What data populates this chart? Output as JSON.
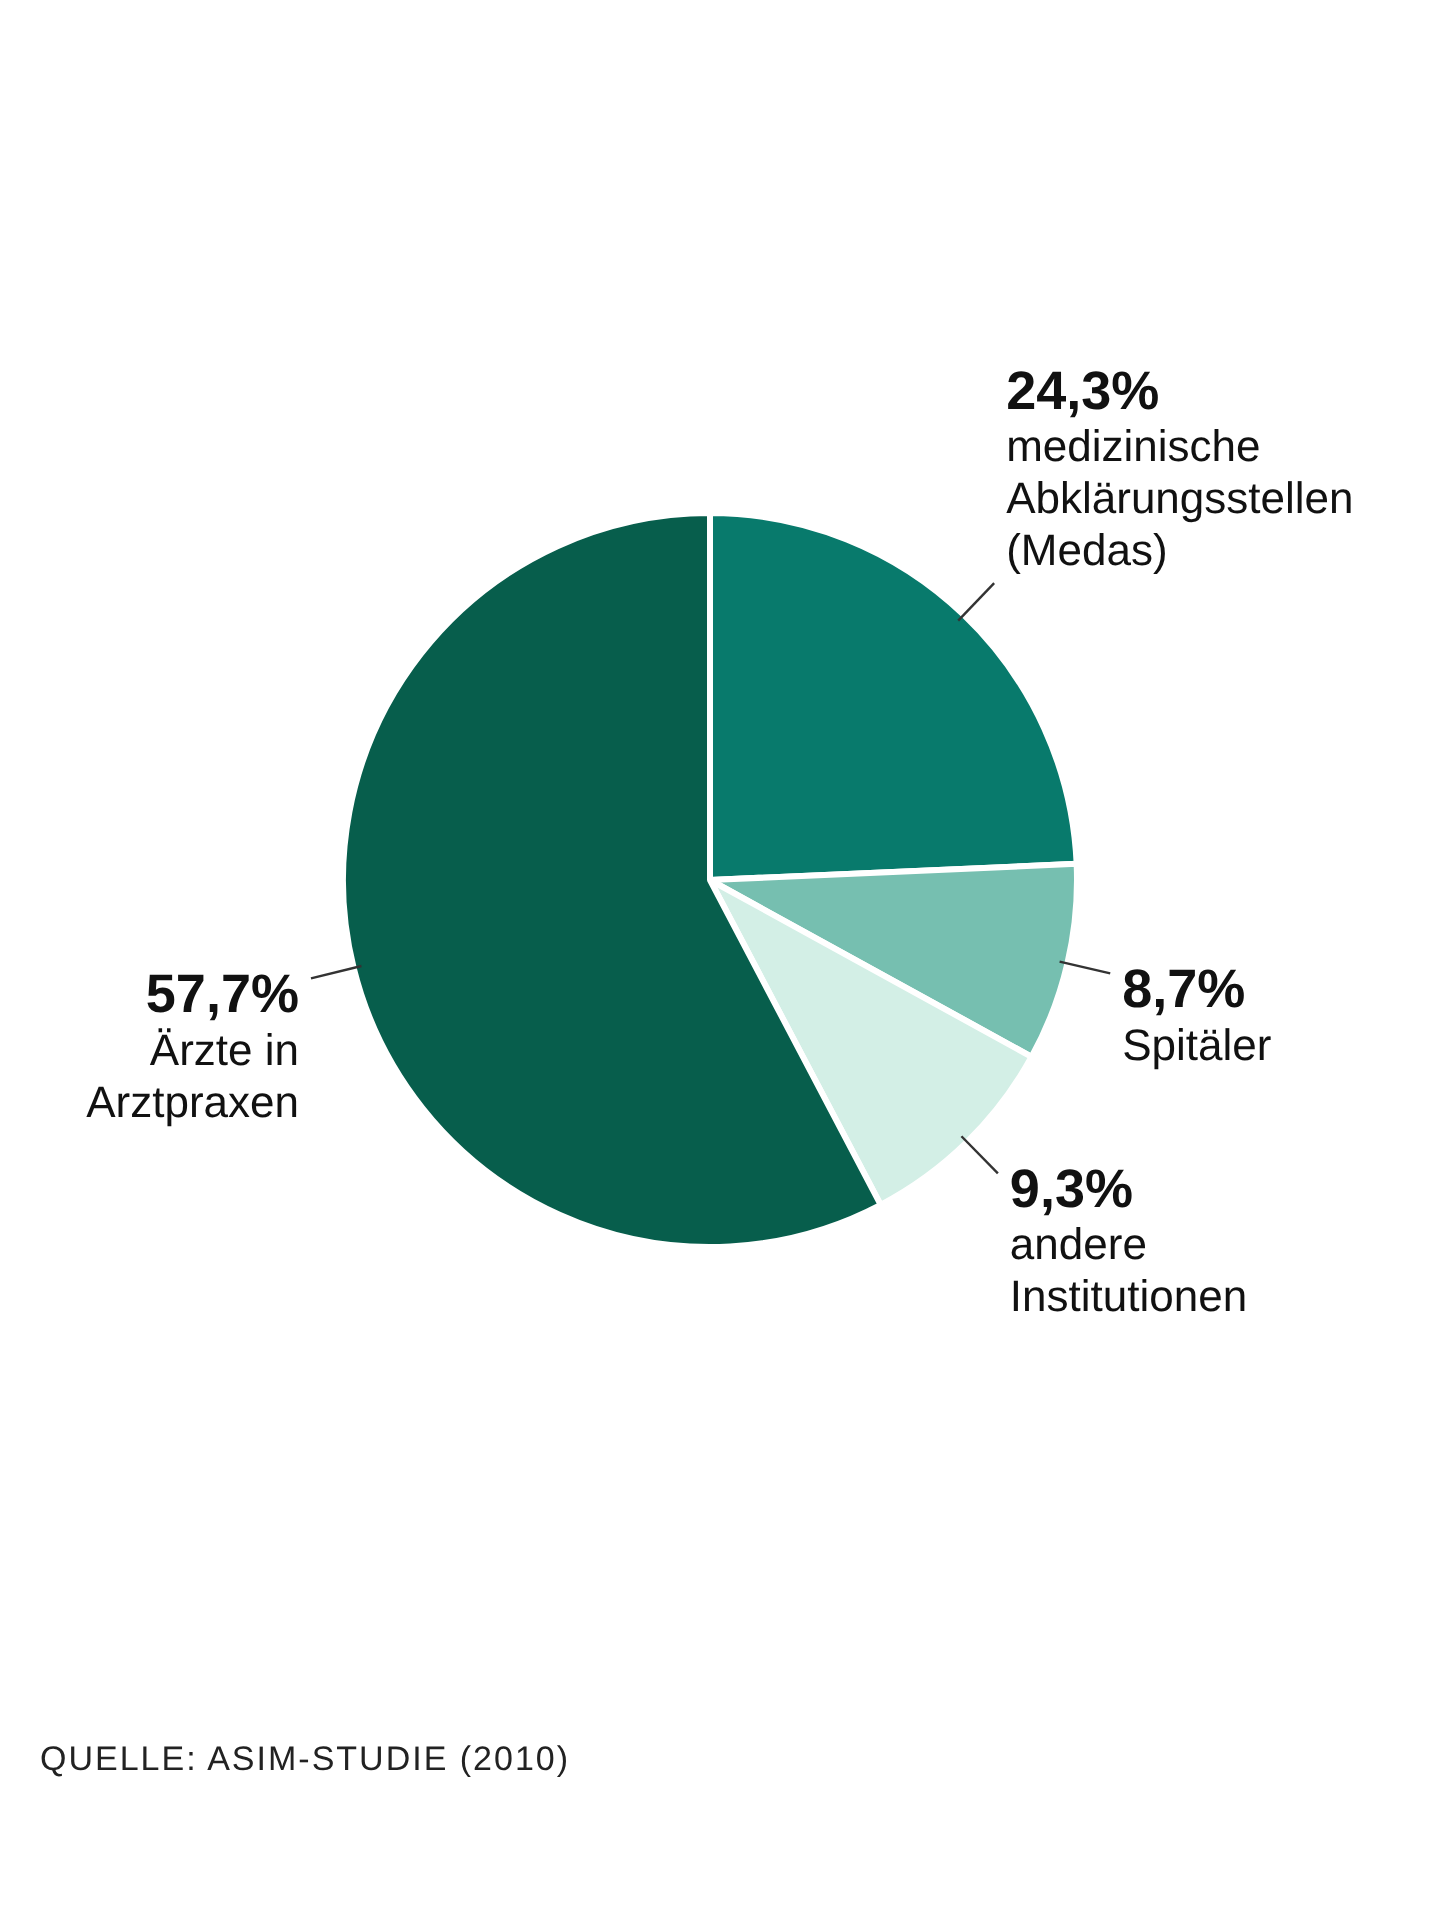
{
  "chart_data": {
    "type": "pie",
    "categories": [
      "medizinische Abklärungsstellen (Medas)",
      "Spitäler",
      "andere Institutionen",
      "Ärzte in Arztpraxen"
    ],
    "values": [
      24.3,
      8.7,
      9.3,
      57.7
    ],
    "value_labels": [
      "24,3%",
      "8,7%",
      "9,3%",
      "57,7%"
    ],
    "colors": [
      "#087a6c",
      "#76bfb0",
      "#d3efe6",
      "#075e4c"
    ],
    "legend": false,
    "annotations": [
      "QUELLE: ASIM-STUDIE (2010)"
    ]
  }
}
